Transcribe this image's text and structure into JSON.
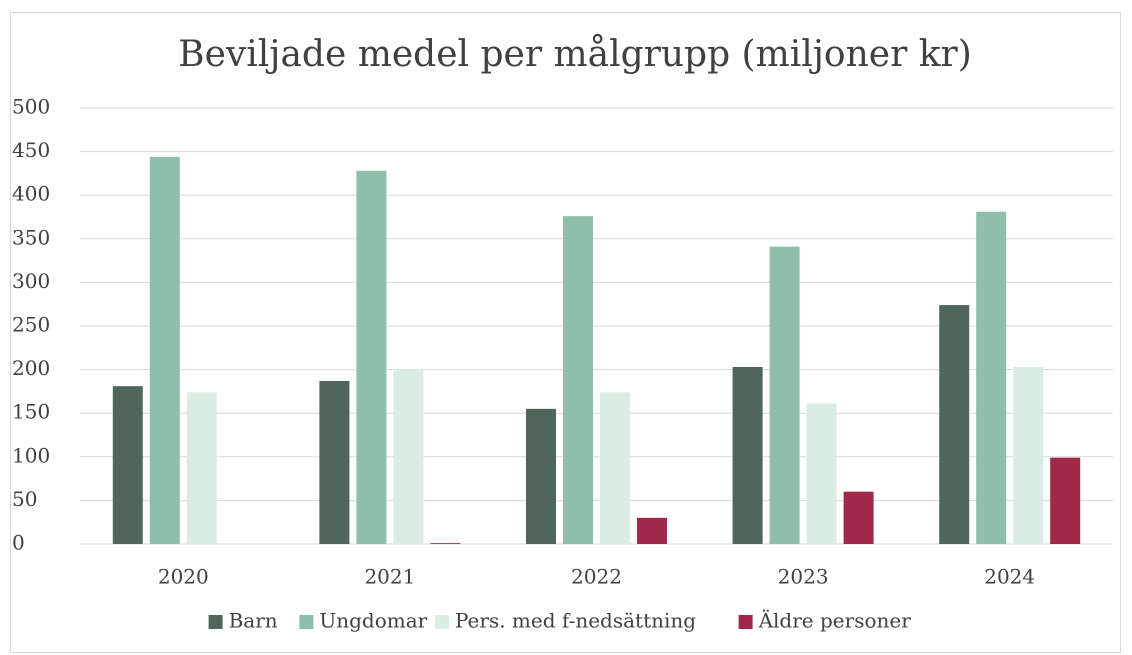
{
  "chart_data": {
    "type": "bar",
    "title": "Beviljade medel per målgrupp (miljoner kr)",
    "categories": [
      "2020",
      "2021",
      "2022",
      "2023",
      "2024"
    ],
    "series": [
      {
        "name": "Barn",
        "color": "#4f665c",
        "values": [
          181,
          187,
          155,
          203,
          274
        ]
      },
      {
        "name": "Ungdomar",
        "color": "#8fbfaa",
        "values": [
          444,
          428,
          376,
          341,
          381
        ]
      },
      {
        "name": "Pers. med f-nedsättning",
        "color": "#dbede3",
        "values": [
          174,
          200,
          174,
          161,
          203
        ]
      },
      {
        "name": "Äldre personer",
        "color": "#a0294a",
        "values": [
          0,
          1,
          30,
          60,
          99
        ]
      }
    ],
    "ylim": [
      0,
      500
    ],
    "yticks": [
      0,
      50,
      100,
      150,
      200,
      250,
      300,
      350,
      400,
      450,
      500
    ],
    "grid": true,
    "legend": "bottom"
  }
}
